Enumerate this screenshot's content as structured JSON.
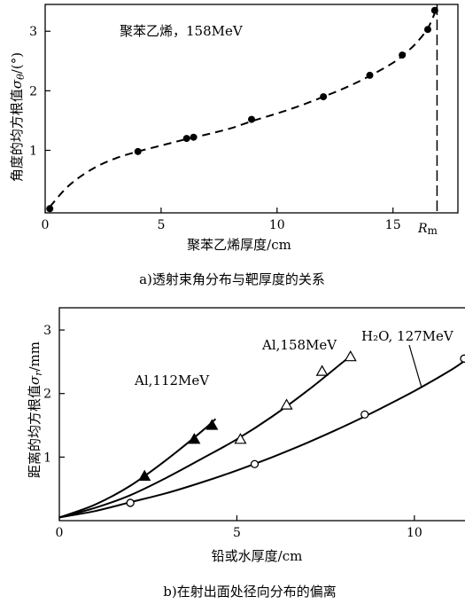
{
  "chart_data": [
    {
      "type": "scatter",
      "caption": "a)透射束角分布与靶厚度的关系",
      "annotation": "聚苯乙烯，158MeV",
      "xlabel": "聚苯乙烯厚度/cm",
      "ylabel_prefix": "角度的均方根值",
      "ylabel_var": "σ",
      "ylabel_sub": "θ",
      "ylabel_unit": "/(°)",
      "xlim": [
        0,
        17.8
      ],
      "ylim": [
        -0.05,
        3.45
      ],
      "x_ticks": [
        0,
        5,
        10,
        15
      ],
      "y_ticks": [
        1,
        2,
        3
      ],
      "vline": {
        "x": 16.9,
        "label": "R",
        "label_sub": "m"
      },
      "series": [
        {
          "marker": "filled-circle",
          "x": [
            0.2,
            4.0,
            6.1,
            6.4,
            8.9,
            12.0,
            14.0,
            15.4,
            16.5,
            16.8
          ],
          "y": [
            0.02,
            0.98,
            1.2,
            1.22,
            1.52,
            1.9,
            2.26,
            2.6,
            3.03,
            3.35
          ]
        }
      ],
      "fit_curve": {
        "style": "dashed",
        "x": [
          0.2,
          1.0,
          2.0,
          3.0,
          4.0,
          5.0,
          6.0,
          7.0,
          8.0,
          9.0,
          10.0,
          11.0,
          12.0,
          13.0,
          14.0,
          15.0,
          15.5,
          16.0,
          16.5,
          16.85
        ],
        "y": [
          0.05,
          0.4,
          0.68,
          0.86,
          0.98,
          1.08,
          1.18,
          1.27,
          1.37,
          1.5,
          1.62,
          1.75,
          1.9,
          2.06,
          2.25,
          2.47,
          2.62,
          2.8,
          3.05,
          3.35
        ]
      }
    },
    {
      "type": "line",
      "caption": "b)在射出面处径向分布的偏离",
      "xlabel": "铅或水厚度/cm",
      "ylabel_prefix": "距离的均方根值",
      "ylabel_var": "σ",
      "ylabel_sub": "r",
      "ylabel_unit": "/mm",
      "xlim": [
        0,
        11.5
      ],
      "ylim": [
        0,
        3.35
      ],
      "x_ticks": [
        0,
        5,
        10
      ],
      "y_ticks": [
        1,
        2,
        3
      ],
      "series": [
        {
          "name": "Al,112MeV",
          "marker": "filled-triangle",
          "x": [
            2.4,
            3.8,
            4.3
          ],
          "y": [
            0.7,
            1.28,
            1.5
          ],
          "curve_x": [
            0,
            1.0,
            2.0,
            3.0,
            4.0,
            4.4
          ],
          "curve_y": [
            0.05,
            0.25,
            0.55,
            0.95,
            1.4,
            1.6
          ]
        },
        {
          "name": "Al,158MeV",
          "marker": "open-triangle",
          "x": [
            5.1,
            6.4,
            7.4,
            8.2
          ],
          "y": [
            1.28,
            1.82,
            2.35,
            2.58
          ],
          "curve_x": [
            0,
            1,
            2,
            3,
            4,
            5,
            6,
            7,
            8,
            8.25
          ],
          "curve_y": [
            0.05,
            0.2,
            0.4,
            0.67,
            0.97,
            1.28,
            1.64,
            2.05,
            2.5,
            2.6
          ]
        },
        {
          "name": "H₂O, 127MeV",
          "marker": "open-circle",
          "x": [
            2.0,
            5.5,
            8.6,
            11.4
          ],
          "y": [
            0.28,
            0.89,
            1.67,
            2.55
          ],
          "curve_x": [
            0,
            1,
            2,
            3,
            4,
            5,
            6,
            7,
            8,
            9,
            10,
            11,
            11.5
          ],
          "curve_y": [
            0.05,
            0.15,
            0.29,
            0.43,
            0.6,
            0.79,
            1.0,
            1.23,
            1.48,
            1.75,
            2.04,
            2.36,
            2.55
          ]
        }
      ]
    }
  ]
}
